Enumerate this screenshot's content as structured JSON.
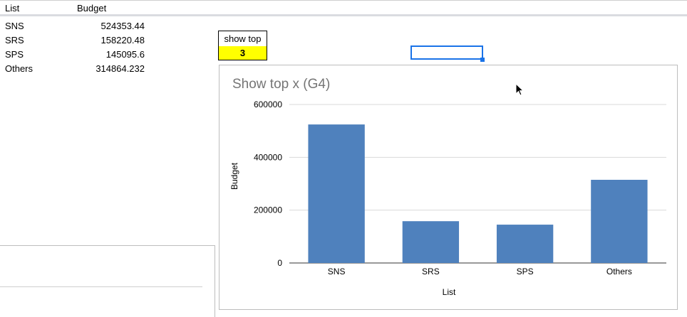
{
  "sheet": {
    "headers": {
      "list": "List",
      "budget": "Budget"
    },
    "rows": [
      {
        "list": "SNS",
        "budget": "524353.44"
      },
      {
        "list": "SRS",
        "budget": "158220.48"
      },
      {
        "list": "SPS",
        "budget": "145095.6"
      },
      {
        "list": "Others",
        "budget": "314864.232"
      }
    ]
  },
  "control": {
    "label": "show top",
    "value": "3",
    "value_bg": "#ffff00"
  },
  "accent": "#1a73e8",
  "chart_data": {
    "type": "bar",
    "title": "Show top x (G4)",
    "xlabel": "List",
    "ylabel": "Budget",
    "categories": [
      "SNS",
      "SRS",
      "SPS",
      "Others"
    ],
    "values": [
      524353.44,
      158220.48,
      145095.6,
      314864.232
    ],
    "ylim": [
      0,
      600000
    ],
    "yticks": [
      "0",
      "200000",
      "400000",
      "600000"
    ],
    "bar_color": "#4f81bd",
    "grid": true,
    "legend": "none"
  }
}
